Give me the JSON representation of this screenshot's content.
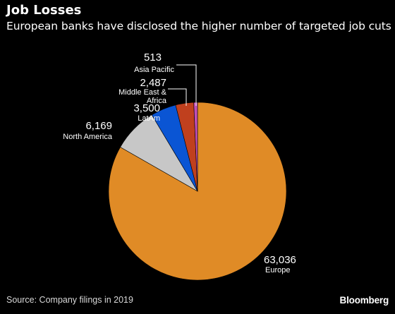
{
  "header": {
    "title": "Job Losses",
    "subtitle": "European banks have disclosed the higher number of targeted job cuts"
  },
  "footer": {
    "source": "Source: Company filings in 2019",
    "brand": "Bloomberg"
  },
  "chart_data": {
    "type": "pie",
    "slices": [
      {
        "label": "Europe",
        "label_lines": [
          "Europe"
        ],
        "value": 63036,
        "value_label": "63,036",
        "color": "#e08b26"
      },
      {
        "label": "North America",
        "label_lines": [
          "North America"
        ],
        "value": 6169,
        "value_label": "6,169",
        "color": "#c7c7c7"
      },
      {
        "label": "LatAm",
        "label_lines": [
          "LatAm"
        ],
        "value": 3500,
        "value_label": "3,500",
        "color": "#0a55d4"
      },
      {
        "label": "Middle East & Africa",
        "label_lines": [
          "Middle East &",
          "Africa"
        ],
        "value": 2487,
        "value_label": "2,487",
        "color": "#c0401e"
      },
      {
        "label": "Asia Pacific",
        "label_lines": [
          "Asia Pacific"
        ],
        "value": 513,
        "value_label": "513",
        "color": "#c04fb6"
      }
    ]
  }
}
